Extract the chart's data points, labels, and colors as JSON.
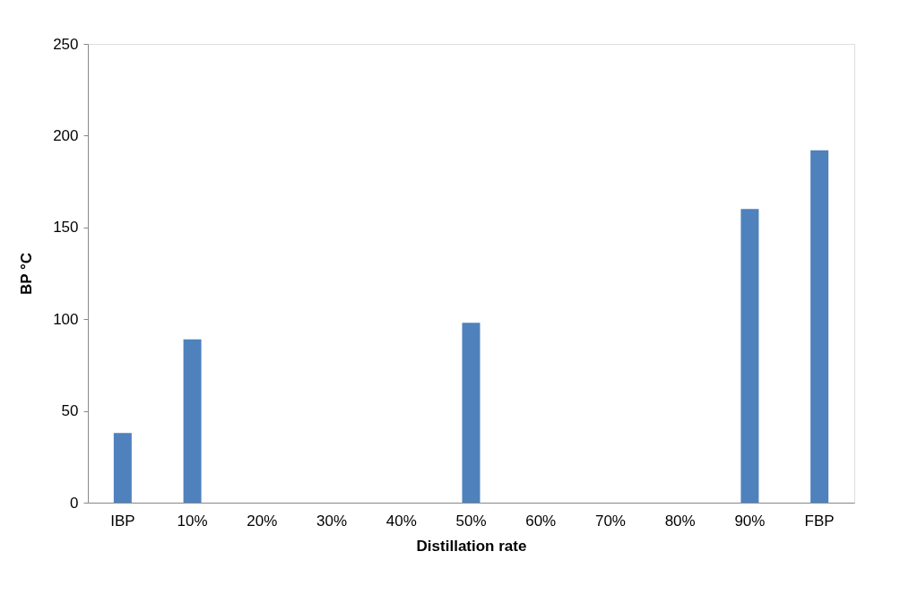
{
  "chart_data": {
    "type": "bar",
    "xlabel": "Distillation rate",
    "ylabel": "BP °C",
    "categories": [
      "IBP",
      "10%",
      "20%",
      "30%",
      "40%",
      "50%",
      "60%",
      "70%",
      "80%",
      "90%",
      "FBP"
    ],
    "values": [
      38,
      89,
      null,
      null,
      null,
      98,
      null,
      null,
      null,
      160,
      192
    ],
    "color": "#4f81bd",
    "ylim": [
      0,
      250
    ],
    "yticks": [
      0,
      50,
      100,
      150,
      200,
      250
    ],
    "grid": false
  }
}
